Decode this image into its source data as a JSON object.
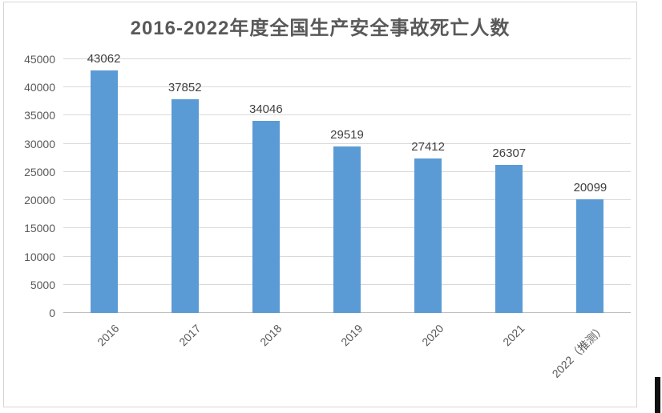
{
  "chart_data": {
    "type": "bar",
    "title": "2016-2022年度全国生产安全事故死亡人数",
    "categories": [
      "2016",
      "2017",
      "2018",
      "2019",
      "2020",
      "2021",
      "2022（推测）"
    ],
    "values": [
      43062,
      37852,
      34046,
      29519,
      27412,
      26307,
      20099
    ],
    "xlabel": "",
    "ylabel": "",
    "ylim": [
      0,
      45000
    ],
    "ytick_step": 5000,
    "yticks": [
      0,
      5000,
      10000,
      15000,
      20000,
      25000,
      30000,
      35000,
      40000,
      45000
    ],
    "grid": true,
    "legend": false,
    "data_labels_shown": true,
    "x_label_rotation_deg": 45,
    "colors": {
      "bar": "#5b9bd5",
      "gridline": "#d9d9d9",
      "axis_line": "#bfbfbf",
      "title_text": "#595959",
      "tick_text": "#595959",
      "data_label_text": "#404040",
      "chart_border": "#d6d6d6",
      "background": "#ffffff"
    }
  }
}
